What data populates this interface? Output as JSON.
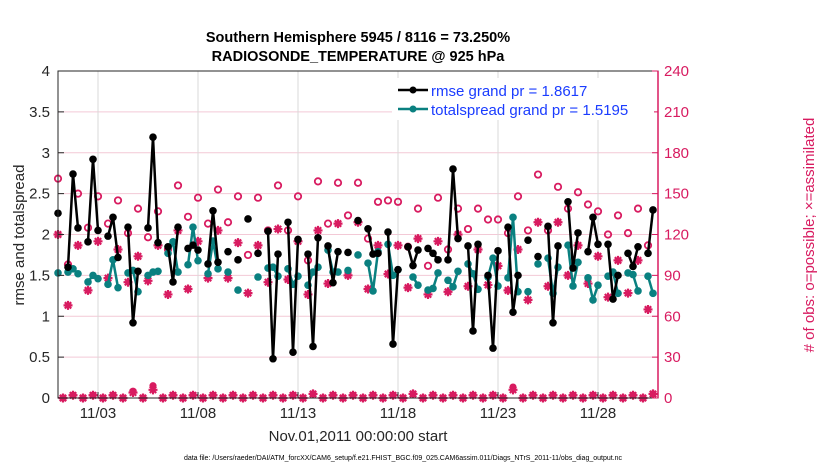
{
  "chart_data": {
    "type": "line",
    "title": "Southern Hemisphere 5945 / 8116 = 73.250%",
    "subtitle": "RADIOSONDE_TEMPERATURE @ 925 hPa",
    "xlabel": "Nov.01,2011 00:00:00 start",
    "ylabel": "rmse and totalspread",
    "ylabel_right": "# of obs: o=possible; ×=assimilated",
    "footnote": "data file: /Users/raeder/DAI/ATM_forcXX/CAM6_setup/f.e21.FHIST_BGC.f09_025.CAM6assim.011/Diags_NTrS_2011-11/obs_diag_output.nc",
    "xlim": [
      0,
      30
    ],
    "ylim": [
      0,
      4
    ],
    "ylim_right": [
      0,
      240
    ],
    "x_unit": "days since Nov.01,2011 00:00",
    "xticks": [
      2,
      7,
      12,
      17,
      22,
      27
    ],
    "xtick_labels": [
      "11/03",
      "11/08",
      "11/13",
      "11/18",
      "11/23",
      "11/28"
    ],
    "yticks": [
      "0",
      "0.5",
      "1",
      "1.5",
      "2",
      "2.5",
      "3",
      "3.5",
      "4"
    ],
    "yticks_right": [
      "0",
      "30",
      "60",
      "90",
      "120",
      "150",
      "180",
      "210",
      "240"
    ],
    "grid": true,
    "legend": {
      "placement": "top-right",
      "entries": [
        "rmse grand pr = 1.8617",
        "totalspread grand pr = 1.5195"
      ]
    },
    "colors": {
      "rmse": "#000000",
      "spread": "#0a8080",
      "obs": "#d81b60",
      "grid_h": "#f3c9d6",
      "grid_v": "#d9d9d9",
      "legend_text": "#1a3cff"
    },
    "series_days": [
      0,
      0.5,
      0.75,
      1,
      1.5,
      1.75,
      2,
      2.5,
      2.75,
      3,
      3.5,
      3.75,
      4,
      4.5,
      4.75,
      5,
      5.5,
      5.75,
      6,
      6.5,
      6.75,
      7,
      7.5,
      7.75,
      8,
      8.5,
      9,
      9.5,
      10,
      10.5,
      10.75,
      11,
      11.5,
      11.75,
      12,
      12.5,
      12.75,
      13,
      13.5,
      13.75,
      14,
      14.5,
      15,
      15.5,
      15.75,
      16,
      16.5,
      16.75,
      17,
      17.5,
      17.75,
      18,
      18.5,
      18.75,
      19,
      19.5,
      19.75,
      20,
      20.5,
      20.75,
      21,
      21.5,
      21.75,
      22,
      22.5,
      22.75,
      23,
      23.5,
      24,
      24.5,
      24.75,
      25,
      25.5,
      25.75,
      26,
      26.5,
      26.75,
      27,
      27.5,
      27.75,
      28,
      28.5,
      28.75,
      29,
      29.5,
      29.75
    ],
    "series": [
      {
        "name": "rmse",
        "values": [
          2.26,
          1.6,
          2.74,
          2.08,
          1.91,
          2.92,
          2.05,
          1.98,
          2.21,
          1.72,
          2.09,
          0.92,
          1.55,
          2.08,
          3.19,
          1.9,
          1.85,
          1.42,
          2.09,
          1.83,
          1.87,
          1.81,
          1.64,
          2.29,
          1.66,
          1.79,
          1.69,
          2.19,
          1.77,
          2.04,
          0.48,
          1.76,
          2.15,
          0.56,
          1.94,
          1.76,
          0.63,
          1.96,
          1.86,
          1.41,
          1.79,
          1.78,
          2.17,
          2.07,
          1.76,
          1.77,
          2.03,
          0.66,
          1.57,
          1.85,
          1.62,
          1.81,
          1.83,
          1.77,
          1.69,
          1.69,
          2.8,
          1.95,
          1.86,
          0.82,
          1.88,
          1.5,
          0.61,
          1.8,
          2.09,
          1.05,
          1.5,
          1.93,
          1.73,
          2.1,
          0.92,
          1.86,
          2.4,
          1.59,
          2.02,
          1.79,
          2.21,
          1.88,
          1.88,
          1.21,
          1.5,
          1.77,
          1.61,
          1.85,
          1.77,
          2.3
        ]
      },
      {
        "name": "totalspread",
        "values": [
          1.53,
          1.54,
          1.58,
          1.52,
          1.42,
          1.5,
          1.46,
          1.39,
          1.69,
          1.35,
          1.53,
          1.56,
          1.3,
          1.5,
          1.54,
          1.55,
          1.77,
          1.91,
          1.54,
          1.63,
          2.09,
          1.68,
          1.52,
          1.92,
          1.58,
          1.54,
          1.32,
          null,
          1.48,
          1.59,
          1.6,
          1.49,
          1.58,
          1.39,
          1.49,
          1.38,
          1.54,
          1.6,
          1.81,
          1.54,
          1.54,
          1.56,
          1.75,
          1.65,
          1.31,
          1.79,
          1.88,
          1.5,
          1.57,
          null,
          1.48,
          1.38,
          1.32,
          1.34,
          1.53,
          1.44,
          1.36,
          1.55,
          1.64,
          1.52,
          1.33,
          1.48,
          1.71,
          1.37,
          1.47,
          2.21,
          1.3,
          1.3,
          1.64,
          1.71,
          1.28,
          1.6,
          1.87,
          1.37,
          1.66,
          1.47,
          1.2,
          1.38,
          1.49,
          1.54,
          1.28,
          1.53,
          1.51,
          1.31,
          1.49,
          1.28
        ]
      }
    ],
    "obs_days_start": 0,
    "obs_days_step": 0.5,
    "obs_possible": [
      161,
      98,
      150,
      125,
      148,
      128,
      145,
      121,
      139,
      118,
      137,
      109,
      156,
      133,
      147,
      128,
      153,
      129,
      148,
      105,
      147,
      123,
      156,
      123,
      148,
      101,
      159,
      128,
      158,
      134,
      158,
      117,
      144,
      145,
      144,
      111,
      139,
      97,
      147,
      109,
      139,
      124,
      139,
      131,
      131,
      121,
      148,
      123,
      164,
      123,
      155,
      139,
      151,
      142,
      137,
      120,
      134,
      121,
      139,
      112
    ],
    "obs_assimilated": [
      120,
      68,
      112,
      79,
      115,
      88,
      109,
      85,
      104,
      86,
      112,
      76,
      123,
      80,
      115,
      88,
      123,
      88,
      114,
      77,
      112,
      85,
      124,
      87,
      115,
      76,
      123,
      84,
      128,
      90,
      129,
      80,
      112,
      91,
      112,
      81,
      117,
      76,
      115,
      78,
      120,
      82,
      109,
      83,
      97,
      79,
      109,
      72,
      129,
      82,
      129,
      90,
      112,
      84,
      104,
      74,
      101,
      77,
      101,
      65
    ],
    "obs_offhour_days_start": 0.25,
    "obs_offhour_possible": [
      0,
      2,
      0,
      2,
      0,
      2,
      0,
      5,
      0,
      9,
      0,
      2,
      0,
      2,
      0,
      2,
      0,
      2,
      0,
      2,
      0,
      2,
      0,
      2,
      0,
      3,
      0,
      2,
      0,
      2,
      0,
      2,
      0,
      2,
      0,
      3,
      0,
      2,
      0,
      2,
      0,
      2,
      0,
      2,
      0,
      8,
      0,
      2,
      0,
      2,
      0,
      2,
      0,
      2,
      0,
      2,
      0,
      2,
      0,
      3
    ],
    "obs_offhour_assimilated": [
      0,
      2,
      0,
      2,
      0,
      2,
      0,
      4,
      0,
      6,
      0,
      2,
      0,
      2,
      0,
      2,
      0,
      2,
      0,
      2,
      0,
      2,
      0,
      2,
      0,
      3,
      0,
      2,
      0,
      2,
      0,
      2,
      0,
      2,
      0,
      3,
      0,
      2,
      0,
      2,
      0,
      2,
      0,
      2,
      0,
      6,
      0,
      2,
      0,
      2,
      0,
      2,
      0,
      2,
      0,
      2,
      0,
      2,
      0,
      3
    ]
  }
}
